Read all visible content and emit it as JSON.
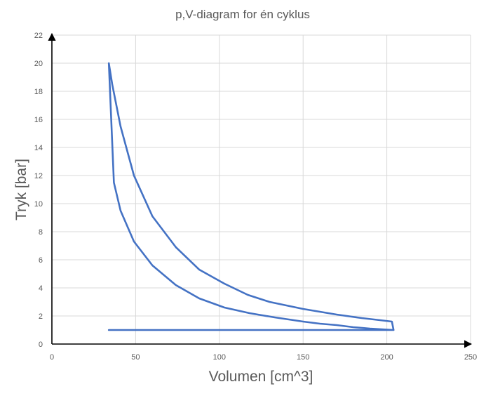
{
  "chart_data": {
    "type": "line",
    "title": "p,V-diagram for én cyklus",
    "xlabel": "Volumen [cm^3]",
    "ylabel": "Tryk [bar]",
    "xlim": [
      0,
      250
    ],
    "ylim": [
      0,
      22
    ],
    "x_ticks": [
      0,
      50,
      100,
      150,
      200,
      250
    ],
    "y_ticks": [
      0,
      2,
      4,
      6,
      8,
      10,
      12,
      14,
      16,
      18,
      20,
      22
    ],
    "grid": "on",
    "legend": "none",
    "series_color": "#4472C4",
    "series": [
      {
        "x": [
          34,
          34,
          204,
          203,
          196,
          185,
          170,
          150,
          130,
          117,
          103,
          88,
          74,
          60,
          49,
          41,
          36,
          34,
          37,
          41,
          49,
          60,
          74,
          88,
          103,
          118,
          133,
          150,
          160,
          170,
          180,
          190,
          197,
          204
        ],
        "y": [
          1.0,
          1.0,
          1.0,
          1.6,
          1.7,
          1.85,
          2.1,
          2.5,
          3.0,
          3.5,
          4.3,
          5.3,
          6.9,
          9.1,
          12.0,
          15.5,
          18.5,
          20.0,
          11.5,
          9.5,
          7.3,
          5.6,
          4.2,
          3.25,
          2.6,
          2.2,
          1.9,
          1.6,
          1.45,
          1.35,
          1.2,
          1.1,
          1.05,
          1.0
        ]
      }
    ]
  }
}
